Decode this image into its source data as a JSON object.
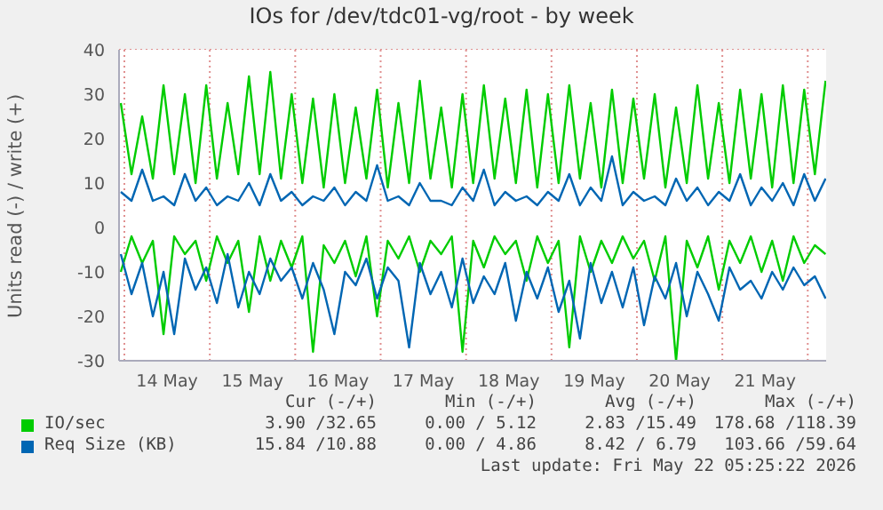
{
  "chart_data": {
    "type": "line",
    "title": "IOs for /dev/tdc01-vg/root - by week",
    "ylabel": "Units read (-) / write (+)",
    "x": [
      "2026-05-13T23:00",
      "2026-05-14T02:00",
      "2026-05-14T05:00",
      "2026-05-14T08:00",
      "2026-05-14T11:00",
      "2026-05-14T14:00",
      "2026-05-14T17:00",
      "2026-05-14T20:00",
      "2026-05-14T23:00",
      "2026-05-15T02:00",
      "2026-05-15T05:00",
      "2026-05-15T08:00",
      "2026-05-15T11:00",
      "2026-05-15T14:00",
      "2026-05-15T17:00",
      "2026-05-15T20:00",
      "2026-05-15T23:00",
      "2026-05-16T02:00",
      "2026-05-16T05:00",
      "2026-05-16T08:00",
      "2026-05-16T11:00",
      "2026-05-16T14:00",
      "2026-05-16T17:00",
      "2026-05-16T20:00",
      "2026-05-16T23:00",
      "2026-05-17T02:00",
      "2026-05-17T05:00",
      "2026-05-17T08:00",
      "2026-05-17T11:00",
      "2026-05-17T14:00",
      "2026-05-17T17:00",
      "2026-05-17T20:00",
      "2026-05-17T23:00",
      "2026-05-18T02:00",
      "2026-05-18T05:00",
      "2026-05-18T08:00",
      "2026-05-18T11:00",
      "2026-05-18T14:00",
      "2026-05-18T17:00",
      "2026-05-18T20:00",
      "2026-05-18T23:00",
      "2026-05-19T02:00",
      "2026-05-19T05:00",
      "2026-05-19T08:00",
      "2026-05-19T11:00",
      "2026-05-19T14:00",
      "2026-05-19T17:00",
      "2026-05-19T20:00",
      "2026-05-19T23:00",
      "2026-05-20T02:00",
      "2026-05-20T05:00",
      "2026-05-20T08:00",
      "2026-05-20T11:00",
      "2026-05-20T14:00",
      "2026-05-20T17:00",
      "2026-05-20T20:00",
      "2026-05-20T23:00",
      "2026-05-21T02:00",
      "2026-05-21T05:00",
      "2026-05-21T08:00",
      "2026-05-21T11:00",
      "2026-05-21T14:00",
      "2026-05-21T17:00",
      "2026-05-21T20:00",
      "2026-05-21T23:00",
      "2026-05-22T02:00",
      "2026-05-22T05:00"
    ],
    "series": [
      {
        "color": "#00cc00",
        "values": [
          -10,
          -2,
          -8,
          -3,
          -24,
          -2,
          -6,
          -3,
          -12,
          -2,
          -8,
          -3,
          -19,
          -2,
          -12,
          -3,
          -9,
          -2,
          -28,
          -4,
          -8,
          -3,
          -11,
          -2,
          -20,
          -3,
          -7,
          -2,
          -10,
          -3,
          -6,
          -2,
          -28,
          -3,
          -9,
          -2,
          -6,
          -3,
          -12,
          -2,
          -8,
          -3,
          -27,
          -2,
          -10,
          -3,
          -8,
          -2,
          -7,
          -3,
          -12,
          -2,
          -30,
          -3,
          -9,
          -2,
          -14,
          -3,
          -8,
          -2,
          -10,
          -3,
          -12,
          -2,
          -8,
          -4,
          -6
        ]
      },
      {
        "color": "#0066b3",
        "values": [
          -6,
          -15,
          -8,
          -20,
          -10,
          -24,
          -7,
          -14,
          -9,
          -17,
          -6,
          -18,
          -10,
          -15,
          -7,
          -12,
          -9,
          -16,
          -8,
          -14,
          -24,
          -10,
          -13,
          -7,
          -16,
          -9,
          -12,
          -27,
          -8,
          -15,
          -10,
          -18,
          -7,
          -17,
          -11,
          -15,
          -8,
          -21,
          -10,
          -16,
          -9,
          -19,
          -12,
          -25,
          -8,
          -17,
          -10,
          -18,
          -9,
          -22,
          -11,
          -16,
          -8,
          -20,
          -10,
          -15,
          -21,
          -9,
          -14,
          -12,
          -16,
          -10,
          -14,
          -9,
          -13,
          -11,
          -16
        ]
      },
      {
        "name": "IO/sec",
        "color": "#00cc00",
        "values": [
          28,
          12,
          25,
          11,
          32,
          12,
          30,
          10,
          32,
          11,
          28,
          12,
          34,
          12,
          35,
          11,
          30,
          10,
          29,
          9,
          30,
          10,
          27,
          11,
          31,
          9,
          28,
          10,
          33,
          11,
          27,
          9,
          30,
          10,
          32,
          11,
          29,
          10,
          31,
          9,
          30,
          10,
          32,
          11,
          28,
          9,
          31,
          10,
          29,
          11,
          30,
          9,
          27,
          10,
          32,
          11,
          28,
          10,
          31,
          11,
          30,
          9,
          32,
          10,
          31,
          12,
          33
        ]
      },
      {
        "name": "Req Size (KB)",
        "color": "#0066b3",
        "values": [
          8,
          6,
          13,
          6,
          7,
          5,
          12,
          6,
          9,
          5,
          7,
          6,
          10,
          5,
          12,
          6,
          8,
          5,
          7,
          6,
          9,
          5,
          8,
          6,
          14,
          6,
          7,
          5,
          10,
          6,
          6,
          5,
          9,
          6,
          13,
          5,
          8,
          6,
          7,
          5,
          8,
          6,
          12,
          5,
          9,
          6,
          16,
          5,
          8,
          6,
          7,
          5,
          11,
          6,
          9,
          5,
          8,
          6,
          12,
          5,
          9,
          6,
          10,
          5,
          12,
          6,
          11
        ]
      }
    ],
    "xlim": [
      "2026-05-13T22:30",
      "2026-05-22T05:10"
    ],
    "xticks": [
      {
        "value": "2026-05-14T00:00",
        "label": null
      },
      {
        "value": "2026-05-14T12:00",
        "label": "14 May"
      },
      {
        "value": "2026-05-15T00:00",
        "label": null
      },
      {
        "value": "2026-05-15T12:00",
        "label": "15 May"
      },
      {
        "value": "2026-05-16T00:00",
        "label": null
      },
      {
        "value": "2026-05-16T12:00",
        "label": "16 May"
      },
      {
        "value": "2026-05-17T00:00",
        "label": null
      },
      {
        "value": "2026-05-17T12:00",
        "label": "17 May"
      },
      {
        "value": "2026-05-18T00:00",
        "label": null
      },
      {
        "value": "2026-05-18T12:00",
        "label": "18 May"
      },
      {
        "value": "2026-05-19T00:00",
        "label": null
      },
      {
        "value": "2026-05-19T12:00",
        "label": "19 May"
      },
      {
        "value": "2026-05-20T00:00",
        "label": null
      },
      {
        "value": "2026-05-20T12:00",
        "label": "20 May"
      },
      {
        "value": "2026-05-21T00:00",
        "label": null
      },
      {
        "value": "2026-05-21T12:00",
        "label": "21 May"
      },
      {
        "value": "2026-05-22T00:00",
        "label": null
      }
    ],
    "ylim": [
      -30,
      40
    ],
    "yticks": [
      -30,
      -20,
      -10,
      0,
      10,
      20,
      30,
      40
    ],
    "grid": true,
    "legend": "bottom",
    "marker": "none",
    "line_style": "solid",
    "annotations": [
      "Cur (-/+)",
      "Min (-/+)",
      "Avg (-/+)",
      "Max (-/+)",
      "3.90 /32.65",
      "0.00 / 5.12",
      "2.83 /15.49",
      "178.68 /118.39",
      "15.84 /10.88",
      "0.00 / 4.86",
      "8.42 / 6.79",
      "103.66 /59.64",
      "Last update: Fri May 22 05:25:22 2026"
    ]
  }
}
